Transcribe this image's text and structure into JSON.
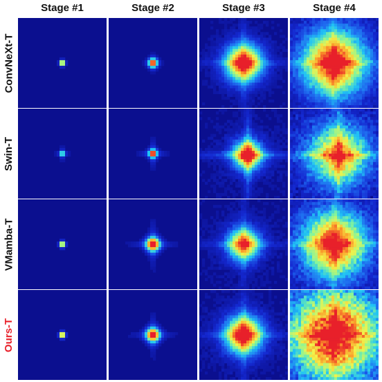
{
  "columns": [
    "Stage #1",
    "Stage #2",
    "Stage #3",
    "Stage #4"
  ],
  "rows": [
    {
      "label": "ConvNeXt-T",
      "highlight": false
    },
    {
      "label": "Swin-T",
      "highlight": false
    },
    {
      "label": "VMamba-T",
      "highlight": false
    },
    {
      "label": "Ours-T",
      "highlight": true
    }
  ],
  "colors": {
    "background": "#0b0f8f",
    "highlight_label": "#e8202a",
    "colormap": [
      "#0b0f8f",
      "#1428d0",
      "#1f6cf0",
      "#21c4f4",
      "#86f59a",
      "#f2f24a",
      "#fb9a2a",
      "#e8202a"
    ]
  },
  "heatmaps": [
    [
      {
        "spread": 0.05,
        "intensity": 1.0,
        "cross": 0.0,
        "noise": 0.0
      },
      {
        "spread": 0.08,
        "intensity": 1.0,
        "cross": 0.15,
        "noise": 0.0
      },
      {
        "spread": 0.32,
        "intensity": 1.0,
        "cross": 0.3,
        "noise": 0.25
      },
      {
        "spread": 0.55,
        "intensity": 0.95,
        "cross": 0.35,
        "noise": 0.45
      }
    ],
    [
      {
        "spread": 0.04,
        "intensity": 0.55,
        "cross": 0.3,
        "noise": 0.0
      },
      {
        "spread": 0.07,
        "intensity": 0.85,
        "cross": 0.45,
        "noise": 0.05
      },
      {
        "spread": 0.25,
        "intensity": 0.9,
        "cross": 0.6,
        "noise": 0.35
      },
      {
        "spread": 0.5,
        "intensity": 0.75,
        "cross": 0.5,
        "noise": 0.6
      }
    ],
    [
      {
        "spread": 0.05,
        "intensity": 0.9,
        "cross": 0.1,
        "noise": 0.0
      },
      {
        "spread": 0.12,
        "intensity": 1.0,
        "cross": 0.35,
        "noise": 0.1
      },
      {
        "spread": 0.28,
        "intensity": 0.85,
        "cross": 0.3,
        "noise": 0.3
      },
      {
        "spread": 0.55,
        "intensity": 0.9,
        "cross": 0.35,
        "noise": 0.55
      }
    ],
    [
      {
        "spread": 0.05,
        "intensity": 1.0,
        "cross": 0.1,
        "noise": 0.0
      },
      {
        "spread": 0.12,
        "intensity": 1.0,
        "cross": 0.3,
        "noise": 0.1
      },
      {
        "spread": 0.32,
        "intensity": 1.0,
        "cross": 0.35,
        "noise": 0.3
      },
      {
        "spread": 0.75,
        "intensity": 0.9,
        "cross": 0.35,
        "noise": 0.8
      }
    ]
  ]
}
